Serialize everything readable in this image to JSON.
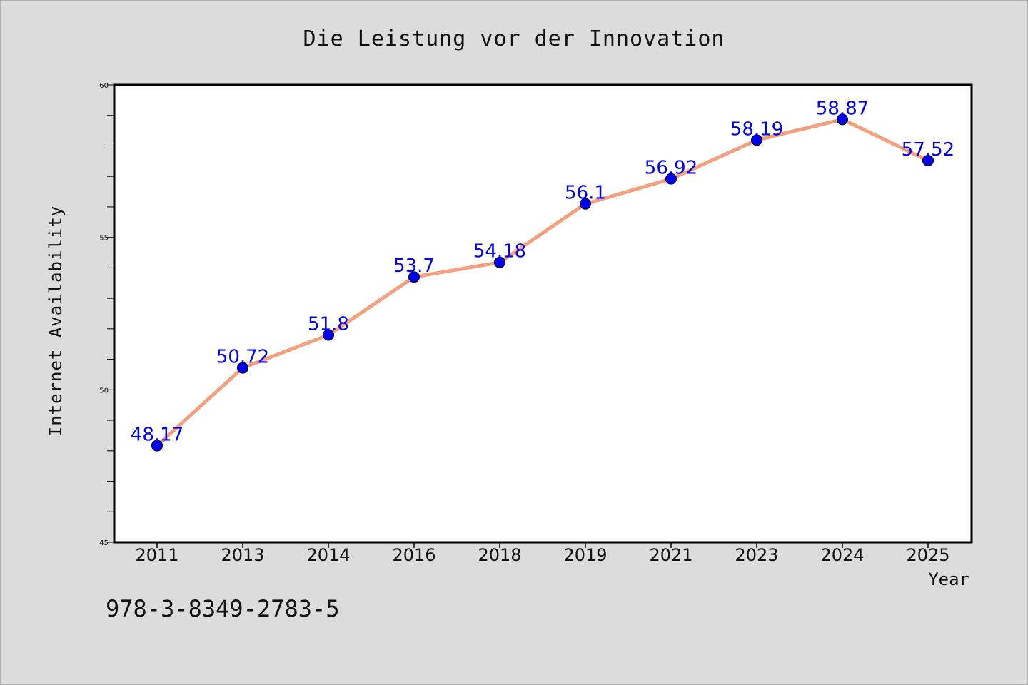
{
  "chart_data": {
    "type": "line",
    "title": "Die Leistung vor der Innovation",
    "xlabel": "Year",
    "ylabel": "Internet Availability",
    "categories": [
      "2011",
      "2013",
      "2014",
      "2016",
      "2018",
      "2019",
      "2021",
      "2023",
      "2024",
      "2025"
    ],
    "series": [
      {
        "values": [
          48.17,
          50.72,
          51.8,
          53.7,
          54.18,
          56.1,
          56.92,
          58.19,
          58.87,
          57.52
        ]
      }
    ],
    "data_labels": [
      "48.17",
      "50.72",
      "51.8",
      "53.7",
      "54.18",
      "56.1",
      "56.92",
      "58.19",
      "58.87",
      "57.52"
    ],
    "ylim": [
      45,
      60
    ],
    "yticks": [
      45,
      50,
      55,
      60
    ],
    "grid": false,
    "line_color": "#f4a07e",
    "marker_color": "#0000ee",
    "label_color": "#0000ee"
  },
  "annotation": "978-3-8349-2783-5"
}
